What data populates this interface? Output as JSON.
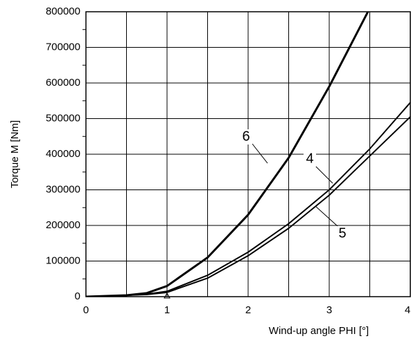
{
  "chart_data": {
    "type": "line",
    "xlabel": "Wind-up angle PHI  [°]",
    "ylabel": "Torque M  [Nm]",
    "x": [
      0,
      0.25,
      0.5,
      0.75,
      1,
      1.5,
      2,
      2.5,
      3,
      3.5,
      4
    ],
    "series": [
      {
        "name": "6",
        "color": "#000000",
        "values": [
          0,
          2000,
          4000,
          10000,
          30000,
          110000,
          230000,
          390000,
          590000,
          810000,
          null
        ]
      },
      {
        "name": "4",
        "color": "#000000",
        "values": [
          0,
          2000,
          4000,
          7000,
          15000,
          60000,
          125000,
          205000,
          300000,
          415000,
          545000
        ]
      },
      {
        "name": "5",
        "color": "#000000",
        "values": [
          0,
          2000,
          4000,
          6000,
          12000,
          52000,
          115000,
          192000,
          285000,
          395000,
          505000
        ]
      }
    ],
    "xlim": [
      0,
      4
    ],
    "xticks": [
      0,
      1,
      2,
      3,
      4
    ],
    "xminor": [
      0.5,
      1.5,
      2.5,
      3.5
    ],
    "ylim": [
      0,
      800000
    ],
    "yticks": [
      0,
      100000,
      200000,
      300000,
      400000,
      500000,
      600000,
      700000,
      800000
    ],
    "grid": true
  }
}
